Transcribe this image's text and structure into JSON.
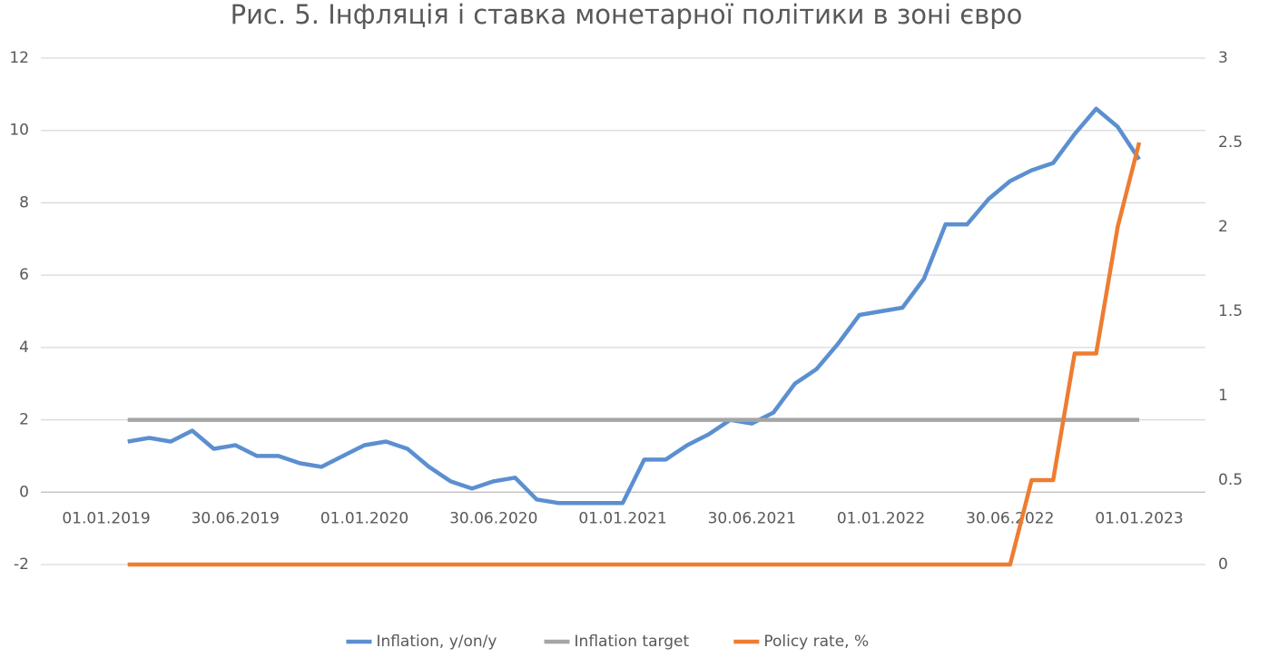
{
  "chart_data": {
    "type": "line",
    "title": "Рис. 5. Інфляція і ставка монетарної політики в зоні євро",
    "categories": [
      "01.01.2019",
      null,
      null,
      null,
      null,
      null,
      "30.06.2019",
      null,
      null,
      null,
      null,
      null,
      "01.01.2020",
      null,
      null,
      null,
      null,
      null,
      "30.06.2020",
      null,
      null,
      null,
      null,
      null,
      "01.01.2021",
      null,
      null,
      null,
      null,
      null,
      "30.06.2021",
      null,
      null,
      null,
      null,
      null,
      "01.01.2022",
      null,
      null,
      null,
      null,
      null,
      "30.06.2022",
      null,
      null,
      null,
      null,
      null,
      "01.01.2023"
    ],
    "series": [
      {
        "name": "Inflation, y/on/y",
        "color": "#5b8fd0",
        "values": [
          null,
          1.4,
          1.5,
          1.4,
          1.7,
          1.2,
          1.3,
          1.0,
          1.0,
          0.8,
          0.7,
          1.0,
          1.3,
          1.4,
          1.2,
          0.7,
          0.3,
          0.1,
          0.3,
          0.4,
          -0.2,
          -0.3,
          -0.3,
          -0.3,
          -0.3,
          0.9,
          0.9,
          1.3,
          1.6,
          2.0,
          1.9,
          2.2,
          3.0,
          3.4,
          4.1,
          4.9,
          5.0,
          5.1,
          5.9,
          7.4,
          7.4,
          8.1,
          8.6,
          8.9,
          9.1,
          9.9,
          10.6,
          10.1,
          9.2
        ]
      },
      {
        "name": "Inflation target",
        "color": "#a5a5a5",
        "values": [
          null,
          2,
          2,
          2,
          2,
          2,
          2,
          2,
          2,
          2,
          2,
          2,
          2,
          2,
          2,
          2,
          2,
          2,
          2,
          2,
          2,
          2,
          2,
          2,
          2,
          2,
          2,
          2,
          2,
          2,
          2,
          2,
          2,
          2,
          2,
          2,
          2,
          2,
          2,
          2,
          2,
          2,
          2,
          2,
          2,
          2,
          2,
          2,
          2
        ]
      },
      {
        "name": "Policy rate, %",
        "color": "#ed7d31",
        "axis": "y2",
        "values": [
          null,
          0,
          0,
          0,
          0,
          0,
          0,
          0,
          0,
          0,
          0,
          0,
          0,
          0,
          0,
          0,
          0,
          0,
          0,
          0,
          0,
          0,
          0,
          0,
          0,
          0,
          0,
          0,
          0,
          0,
          0,
          0,
          0,
          0,
          0,
          0,
          0,
          0,
          0,
          0,
          0,
          0,
          0,
          0.5,
          0.5,
          1.25,
          1.25,
          2.0,
          2.5
        ]
      }
    ],
    "ylim": [
      -2,
      12
    ],
    "yticks": [
      -2,
      0,
      2,
      4,
      6,
      8,
      10,
      12
    ],
    "y2lim": [
      0,
      3
    ],
    "y2ticks": [
      0,
      0.5,
      1,
      1.5,
      2,
      2.5,
      3
    ],
    "grid": true,
    "legend": "bottom"
  }
}
